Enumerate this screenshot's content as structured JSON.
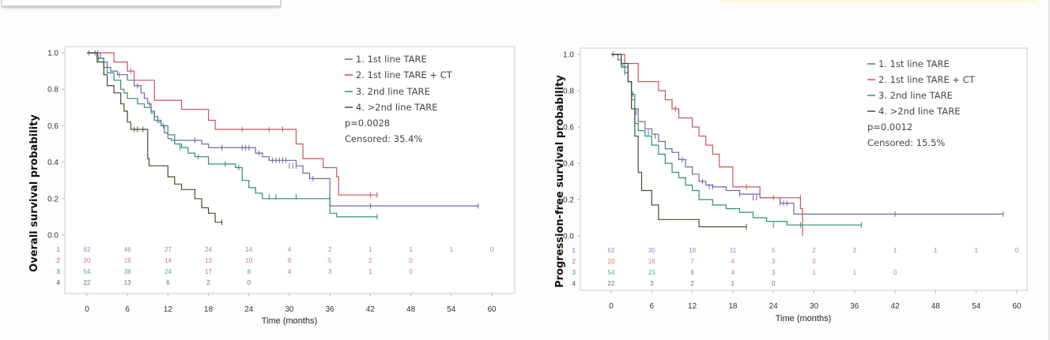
{
  "colors": {
    "series": [
      "#6a6aa8",
      "#c8555a",
      "#2e8f72",
      "#4a4a30"
    ],
    "frame": "#cccccc"
  },
  "chart_data": [
    {
      "type": "line",
      "subtype": "kaplan-meier",
      "ylabel": "Overall survival probability",
      "xlabel": "Time (months)",
      "xlim": [
        0,
        60
      ],
      "ylim": [
        0,
        1
      ],
      "xticks": [
        "0",
        "6",
        "12",
        "18",
        "24",
        "30",
        "36",
        "42",
        "48",
        "54",
        "60"
      ],
      "yticks": [
        "0.0",
        "0.2",
        "0.4",
        "0.6",
        "0.8",
        "1.0"
      ],
      "legend": {
        "position": "top-right",
        "entries": [
          "1. 1st line TARE",
          "2. 1st line TARE + CT",
          "3. 2nd line TARE",
          "4. >2nd line TARE"
        ],
        "pvalue": "p=0.0028",
        "censored": "Censored: 35.4%"
      },
      "risk_table": {
        "row_labels": [
          "1",
          "2",
          "3",
          "4"
        ],
        "rows": [
          [
            "62",
            "46",
            "27",
            "24",
            "14",
            "4",
            "2",
            "1",
            "1",
            "1",
            "0"
          ],
          [
            "20",
            "19",
            "14",
            "13",
            "10",
            "8",
            "5",
            "2",
            "0"
          ],
          [
            "54",
            "38",
            "24",
            "17",
            "8",
            "4",
            "3",
            "1",
            "0"
          ],
          [
            "22",
            "13",
            "6",
            "2",
            "0"
          ]
        ]
      },
      "series": [
        {
          "name": "1. 1st line TARE",
          "steps": [
            [
              0,
              1.0
            ],
            [
              2,
              0.97
            ],
            [
              2.5,
              0.95
            ],
            [
              3,
              0.92
            ],
            [
              3.5,
              0.9
            ],
            [
              4.5,
              0.88
            ],
            [
              6,
              0.85
            ],
            [
              7,
              0.82
            ],
            [
              8,
              0.78
            ],
            [
              8.5,
              0.75
            ],
            [
              9,
              0.72
            ],
            [
              9.5,
              0.68
            ],
            [
              10,
              0.65
            ],
            [
              10.5,
              0.62
            ],
            [
              11,
              0.6
            ],
            [
              11.5,
              0.56
            ],
            [
              12,
              0.53
            ],
            [
              12.5,
              0.52
            ],
            [
              17,
              0.5
            ],
            [
              18,
              0.48
            ],
            [
              25,
              0.45
            ],
            [
              26,
              0.43
            ],
            [
              27,
              0.41
            ],
            [
              31,
              0.38
            ],
            [
              32,
              0.34
            ],
            [
              33,
              0.31
            ],
            [
              36,
              0.16
            ],
            [
              58,
              0.16
            ]
          ],
          "censor": [
            [
              0.3,
              1.0
            ],
            [
              1.2,
              1.0
            ],
            [
              1.6,
              1.0
            ],
            [
              4.8,
              0.88
            ],
            [
              7.5,
              0.82
            ],
            [
              9.3,
              0.72
            ],
            [
              11.3,
              0.6
            ],
            [
              16,
              0.52
            ],
            [
              20,
              0.48
            ],
            [
              23,
              0.48
            ],
            [
              23.5,
              0.48
            ],
            [
              24,
              0.48
            ],
            [
              25.5,
              0.45
            ],
            [
              27.5,
              0.41
            ],
            [
              28,
              0.41
            ],
            [
              28.5,
              0.41
            ],
            [
              29,
              0.41
            ],
            [
              29.5,
              0.41
            ],
            [
              30,
              0.38
            ],
            [
              30.5,
              0.38
            ],
            [
              31,
              0.38
            ],
            [
              33.5,
              0.31
            ],
            [
              42,
              0.16
            ],
            [
              58,
              0.16
            ]
          ]
        },
        {
          "name": "2. 1st line TARE + CT",
          "steps": [
            [
              0,
              1.0
            ],
            [
              4,
              0.95
            ],
            [
              6,
              0.9
            ],
            [
              7,
              0.85
            ],
            [
              10,
              0.74
            ],
            [
              14,
              0.69
            ],
            [
              18,
              0.63
            ],
            [
              19,
              0.58
            ],
            [
              31,
              0.5
            ],
            [
              32,
              0.42
            ],
            [
              35,
              0.37
            ],
            [
              37,
              0.32
            ],
            [
              37.3,
              0.22
            ],
            [
              43,
              0.22
            ]
          ],
          "censor": [
            [
              6.5,
              0.9
            ],
            [
              23,
              0.58
            ],
            [
              27,
              0.58
            ],
            [
              29,
              0.58
            ],
            [
              42,
              0.22
            ],
            [
              43,
              0.22
            ]
          ]
        },
        {
          "name": "3. 2nd line TARE",
          "steps": [
            [
              0,
              1.0
            ],
            [
              1.5,
              0.97
            ],
            [
              2.5,
              0.92
            ],
            [
              3,
              0.89
            ],
            [
              4,
              0.85
            ],
            [
              5,
              0.8
            ],
            [
              5.5,
              0.78
            ],
            [
              6,
              0.75
            ],
            [
              7.5,
              0.72
            ],
            [
              8.5,
              0.7
            ],
            [
              9.5,
              0.67
            ],
            [
              10,
              0.63
            ],
            [
              11,
              0.6
            ],
            [
              12,
              0.55
            ],
            [
              13,
              0.5
            ],
            [
              14,
              0.48
            ],
            [
              15,
              0.45
            ],
            [
              16,
              0.43
            ],
            [
              18,
              0.39
            ],
            [
              22,
              0.37
            ],
            [
              23,
              0.3
            ],
            [
              24,
              0.26
            ],
            [
              25,
              0.23
            ],
            [
              26,
              0.2
            ],
            [
              36,
              0.12
            ],
            [
              37,
              0.1
            ],
            [
              43,
              0.1
            ]
          ],
          "censor": [
            [
              1.7,
              0.97
            ],
            [
              10.5,
              0.63
            ],
            [
              13.8,
              0.48
            ],
            [
              16.5,
              0.43
            ],
            [
              20.5,
              0.39
            ],
            [
              22.5,
              0.37
            ],
            [
              27,
              0.21
            ],
            [
              28,
              0.21
            ],
            [
              31,
              0.21
            ],
            [
              36,
              0.21
            ],
            [
              43,
              0.1
            ]
          ]
        },
        {
          "name": "4. >2nd line TARE",
          "steps": [
            [
              0,
              1.0
            ],
            [
              1.5,
              0.95
            ],
            [
              2.5,
              0.88
            ],
            [
              3,
              0.82
            ],
            [
              4,
              0.78
            ],
            [
              5,
              0.72
            ],
            [
              5.5,
              0.68
            ],
            [
              6,
              0.62
            ],
            [
              6.5,
              0.58
            ],
            [
              9,
              0.42
            ],
            [
              9.2,
              0.38
            ],
            [
              12,
              0.32
            ],
            [
              13,
              0.28
            ],
            [
              14,
              0.25
            ],
            [
              16,
              0.2
            ],
            [
              17,
              0.15
            ],
            [
              18,
              0.12
            ],
            [
              19,
              0.07
            ],
            [
              20,
              0.07
            ]
          ],
          "censor": [
            [
              7,
              0.58
            ],
            [
              7.5,
              0.58
            ],
            [
              8.3,
              0.58
            ],
            [
              20,
              0.07
            ]
          ]
        }
      ]
    },
    {
      "type": "line",
      "subtype": "kaplan-meier",
      "ylabel": "Progression-free survival probability",
      "xlabel": "Time (months)",
      "xlim": [
        0,
        60
      ],
      "ylim": [
        0,
        1
      ],
      "xticks": [
        "0",
        "6",
        "12",
        "18",
        "24",
        "30",
        "36",
        "42",
        "48",
        "54",
        "60"
      ],
      "yticks": [
        "0.0",
        "0.2",
        "0.4",
        "0.6",
        "0.8",
        "1.0"
      ],
      "legend": {
        "position": "top-right",
        "entries": [
          "1. 1st line TARE",
          "2. 1st line TARE + CT",
          "3. 2nd line TARE",
          "4. >2nd line TARE"
        ],
        "pvalue": "p=0.0012",
        "censored": "Censored: 15.5%"
      },
      "risk_table": {
        "row_labels": [
          "1",
          "2",
          "3",
          "4"
        ],
        "rows": [
          [
            "62",
            "30",
            "18",
            "11",
            "5",
            "2",
            "2",
            "1",
            "1",
            "1",
            "0"
          ],
          [
            "20",
            "16",
            "7",
            "4",
            "3",
            "0"
          ],
          [
            "54",
            "23",
            "8",
            "4",
            "3",
            "1",
            "1",
            "0"
          ],
          [
            "22",
            "3",
            "2",
            "1",
            "0"
          ]
        ]
      },
      "series": [
        {
          "name": "1. 1st line TARE",
          "steps": [
            [
              0,
              1.0
            ],
            [
              1,
              0.97
            ],
            [
              1.5,
              0.94
            ],
            [
              2,
              0.9
            ],
            [
              2.5,
              0.85
            ],
            [
              3,
              0.78
            ],
            [
              3.5,
              0.7
            ],
            [
              4,
              0.63
            ],
            [
              5,
              0.59
            ],
            [
              6,
              0.56
            ],
            [
              7,
              0.52
            ],
            [
              8,
              0.48
            ],
            [
              9,
              0.46
            ],
            [
              10,
              0.42
            ],
            [
              11,
              0.38
            ],
            [
              12,
              0.34
            ],
            [
              13,
              0.3
            ],
            [
              14,
              0.28
            ],
            [
              15,
              0.27
            ],
            [
              17,
              0.25
            ],
            [
              19,
              0.23
            ],
            [
              22,
              0.21
            ],
            [
              25,
              0.18
            ],
            [
              27,
              0.12
            ],
            [
              58,
              0.12
            ]
          ],
          "censor": [
            [
              0.3,
              1.0
            ],
            [
              3.7,
              0.68
            ],
            [
              5.5,
              0.57
            ],
            [
              6.5,
              0.55
            ],
            [
              10.5,
              0.42
            ],
            [
              11,
              0.41
            ],
            [
              13.5,
              0.3
            ],
            [
              14.5,
              0.27
            ],
            [
              15,
              0.27
            ],
            [
              19,
              0.23
            ],
            [
              21,
              0.21
            ],
            [
              21.5,
              0.21
            ],
            [
              25,
              0.18
            ],
            [
              25.5,
              0.18
            ],
            [
              26,
              0.18
            ],
            [
              42,
              0.12
            ],
            [
              58,
              0.12
            ]
          ]
        },
        {
          "name": "2. 1st line TARE + CT",
          "steps": [
            [
              0,
              1.0
            ],
            [
              2,
              0.95
            ],
            [
              4,
              0.85
            ],
            [
              7,
              0.8
            ],
            [
              8,
              0.75
            ],
            [
              9,
              0.7
            ],
            [
              10,
              0.65
            ],
            [
              12,
              0.6
            ],
            [
              13,
              0.55
            ],
            [
              14,
              0.5
            ],
            [
              15,
              0.45
            ],
            [
              16,
              0.38
            ],
            [
              18,
              0.27
            ],
            [
              22,
              0.21
            ],
            [
              28,
              0.15
            ],
            [
              28.3,
              0.0
            ]
          ],
          "censor": [
            [
              9.5,
              0.7
            ],
            [
              20,
              0.27
            ],
            [
              24,
              0.21
            ],
            [
              28,
              0.21
            ]
          ]
        },
        {
          "name": "3. 2nd line TARE",
          "steps": [
            [
              0,
              1.0
            ],
            [
              1.5,
              0.93
            ],
            [
              2.5,
              0.85
            ],
            [
              3,
              0.75
            ],
            [
              3.5,
              0.62
            ],
            [
              4,
              0.58
            ],
            [
              5,
              0.55
            ],
            [
              6,
              0.5
            ],
            [
              7,
              0.45
            ],
            [
              8,
              0.4
            ],
            [
              9,
              0.35
            ],
            [
              10,
              0.32
            ],
            [
              11,
              0.28
            ],
            [
              12,
              0.25
            ],
            [
              13,
              0.2
            ],
            [
              15,
              0.17
            ],
            [
              17,
              0.15
            ],
            [
              19,
              0.13
            ],
            [
              21,
              0.1
            ],
            [
              23,
              0.08
            ],
            [
              26,
              0.06
            ],
            [
              37,
              0.06
            ]
          ],
          "censor": [
            [
              2,
              0.9
            ],
            [
              3.2,
              0.78
            ],
            [
              24,
              0.06
            ],
            [
              28,
              0.06
            ],
            [
              37,
              0.06
            ]
          ]
        },
        {
          "name": "4. >2nd line TARE",
          "steps": [
            [
              0,
              1.0
            ],
            [
              1.5,
              0.95
            ],
            [
              2.5,
              0.85
            ],
            [
              3,
              0.7
            ],
            [
              3.5,
              0.55
            ],
            [
              4,
              0.35
            ],
            [
              4.5,
              0.25
            ],
            [
              6,
              0.17
            ],
            [
              7,
              0.09
            ],
            [
              13,
              0.05
            ],
            [
              20,
              0.05
            ]
          ],
          "censor": [
            [
              20,
              0.05
            ]
          ]
        }
      ]
    }
  ]
}
